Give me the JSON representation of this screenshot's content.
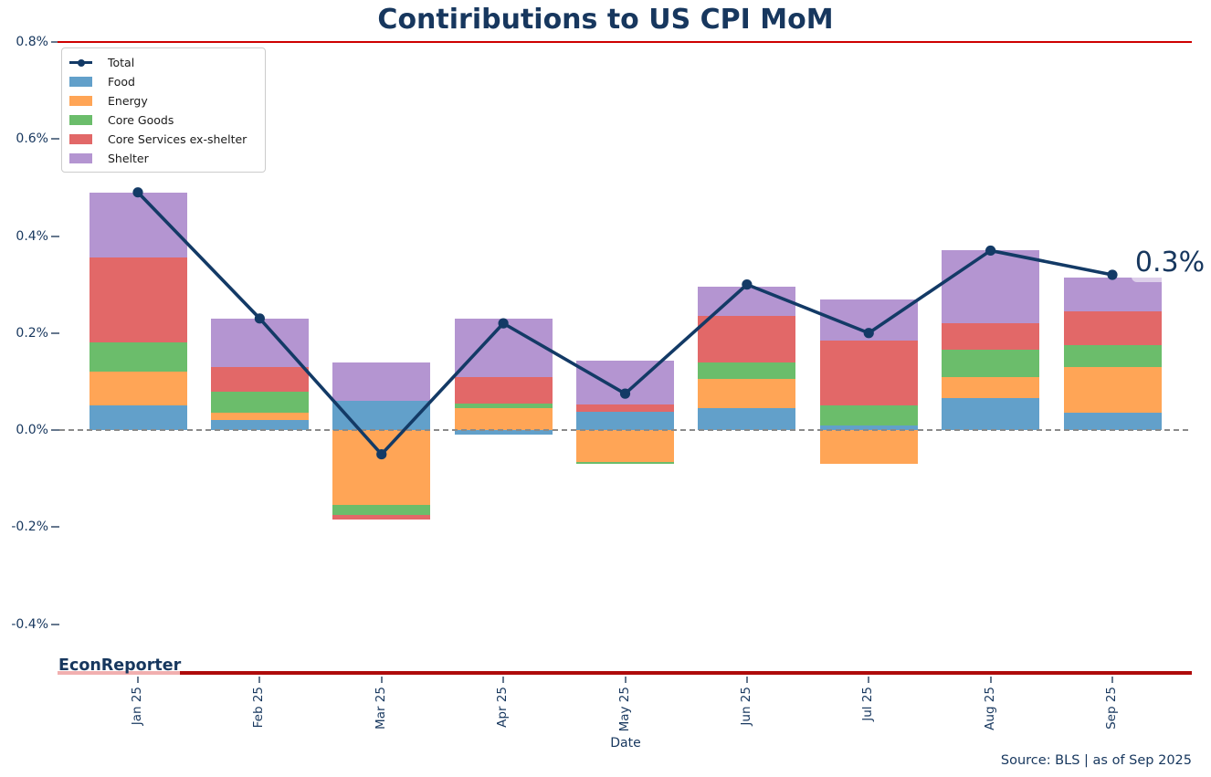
{
  "title": "Contiributions to US CPI MoM",
  "annotation": {
    "text": "0.3%"
  },
  "watermark": "EconReporter",
  "source_note": "Source: BLS | as of Sep 2025",
  "axes": {
    "x_label": "Date",
    "x_tick_labels": [
      "Jan 25",
      "Feb 25",
      "Mar 25",
      "Apr 25",
      "May 25",
      "Jun 25",
      "Jul 25",
      "Aug 25",
      "Sep 25"
    ],
    "y_tick_labels": [
      "0.8%",
      "0.6%",
      "0.4%",
      "0.2%",
      "0.0%",
      "-0.2%",
      "-0.4%"
    ],
    "y_tick_values": [
      0.8,
      0.6,
      0.4,
      0.2,
      0.0,
      -0.2,
      -0.4
    ]
  },
  "colors": {
    "navy_text": "#17375E",
    "total_line": "#133A66",
    "top_rule": "#CE0000",
    "bottom_rule": "#AE0A0A",
    "bottom_rule_light": "#F1AFAF",
    "zero_line": "#8A8A8A",
    "tick": "#66788E",
    "legend_border": "#CCCCCC",
    "food": "#62A0CA",
    "energy": "#FFA556",
    "core_goods": "#6BBD6B",
    "core_services": "#E26868",
    "shelter": "#B495D1"
  },
  "legend": {
    "items": [
      {
        "label": "Total",
        "type": "line",
        "color": "#133A66"
      },
      {
        "label": "Food",
        "type": "patch",
        "color": "#62A0CA"
      },
      {
        "label": "Energy",
        "type": "patch",
        "color": "#FFA556"
      },
      {
        "label": "Core Goods",
        "type": "patch",
        "color": "#6BBD6B"
      },
      {
        "label": "Core Services ex-shelter",
        "type": "patch",
        "color": "#E26868"
      },
      {
        "label": "Shelter",
        "type": "patch",
        "color": "#B495D1"
      }
    ]
  },
  "chart_data": {
    "type": "bar",
    "subtype": "stacked-bar-with-total-line",
    "title": "Contiributions to US CPI MoM",
    "xlabel": "Date",
    "ylabel": "",
    "unit": "percentage-point contribution to CPI MoM",
    "categories": [
      "Jan 25",
      "Feb 25",
      "Mar 25",
      "Apr 25",
      "May 25",
      "Jun 25",
      "Jul 25",
      "Aug 25",
      "Sep 25"
    ],
    "series": [
      {
        "name": "Food",
        "color": "#62A0CA",
        "values": [
          0.05,
          0.02,
          0.06,
          -0.01,
          0.0375,
          0.045,
          0.01,
          0.065,
          0.035
        ]
      },
      {
        "name": "Energy",
        "color": "#FFA556",
        "values": [
          0.07,
          0.015,
          -0.155,
          0.045,
          -0.065,
          0.06,
          -0.07,
          0.045,
          0.095
        ]
      },
      {
        "name": "Core Goods",
        "color": "#6BBD6B",
        "values": [
          0.06,
          0.045,
          -0.02,
          0.01,
          -0.005,
          0.035,
          0.04,
          0.055,
          0.045
        ]
      },
      {
        "name": "Core Services ex-shelter",
        "color": "#E26868",
        "values": [
          0.175,
          0.05,
          -0.01,
          0.055,
          0.015,
          0.095,
          0.135,
          0.055,
          0.07
        ]
      },
      {
        "name": "Shelter",
        "color": "#B495D1",
        "values": [
          0.135,
          0.1,
          0.08,
          0.12,
          0.09,
          0.06,
          0.085,
          0.15,
          0.07
        ]
      }
    ],
    "line_series": {
      "name": "Total",
      "color": "#133A66",
      "values": [
        0.49,
        0.23,
        -0.05,
        0.22,
        0.075,
        0.3,
        0.2,
        0.37,
        0.32
      ]
    },
    "last_value_annotation": "0.3%",
    "ylim": [
      -0.5,
      0.8
    ],
    "y_ticks": [
      0.8,
      0.6,
      0.4,
      0.2,
      0.0,
      -0.2,
      -0.4
    ],
    "y_tick_labels": [
      "0.8%",
      "0.6%",
      "0.4%",
      "0.2%",
      "0.0%",
      "-0.2%",
      "-0.4%"
    ],
    "grid": false,
    "legend_position": "upper-left",
    "zero_line_style": "dashed-gray",
    "top_boundary_line": {
      "value": 0.8,
      "color": "#CE0000"
    },
    "bottom_boundary_line": {
      "value": -0.5,
      "color": "#AE0A0A"
    }
  }
}
